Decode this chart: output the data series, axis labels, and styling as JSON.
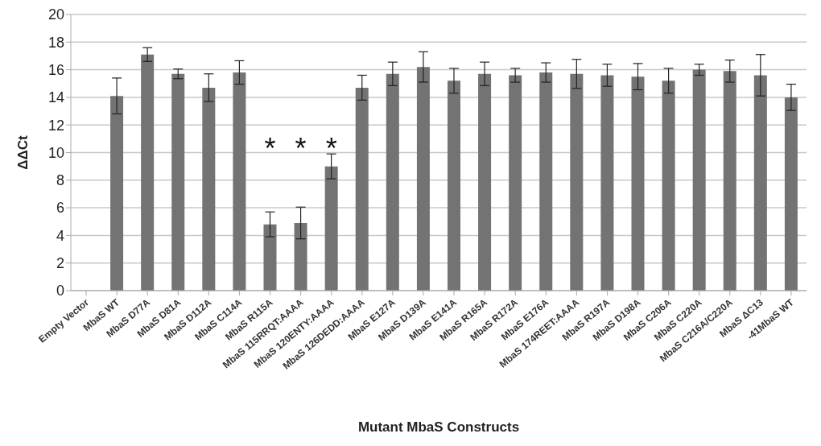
{
  "chart_data": {
    "type": "bar",
    "xlabel": "Mutant MbaS Constructs",
    "ylabel": "ΔΔCt",
    "categories": [
      "Empty Vector",
      "MbaS WT",
      "MbaS D77A",
      "MbaS D81A",
      "MbaS D112A",
      "MbaS C114A",
      "MbaS R115A",
      "MbaS 115RRQT:AAAA",
      "MbaS 120ENTY:AAAA",
      "MbaS 126DEDD:AAAA",
      "MbaS E127A",
      "MbaS D139A",
      "MbaS E141A",
      "MbaS R165A",
      "MbaS R172A",
      "MbaS E176A",
      "MbaS 174REET:AAAA",
      "MbaS R197A",
      "MbaS D198A",
      "MbaS C206A",
      "MbaS C220A",
      "MbaS C216A/C220A",
      "MbaS ΔC13",
      "-41MbaS WT"
    ],
    "values": [
      0,
      14.1,
      17.1,
      15.7,
      14.7,
      15.8,
      4.8,
      4.9,
      9.0,
      14.7,
      15.7,
      16.2,
      15.2,
      15.7,
      15.6,
      15.8,
      15.7,
      15.6,
      15.5,
      15.2,
      16.0,
      15.9,
      15.6,
      14.0
    ],
    "errors": [
      null,
      1.3,
      0.5,
      0.35,
      1.0,
      0.85,
      0.9,
      1.15,
      0.9,
      0.9,
      0.85,
      1.1,
      0.9,
      0.85,
      0.5,
      0.7,
      1.05,
      0.8,
      0.95,
      0.9,
      0.4,
      0.8,
      1.5,
      0.95
    ],
    "color": "#737373",
    "ylim": [
      0,
      20
    ],
    "yticks": [
      0,
      2,
      4,
      6,
      8,
      10,
      12,
      14,
      16,
      18,
      20
    ],
    "grid": "y",
    "annotations": [
      "*",
      "*",
      "*"
    ]
  }
}
